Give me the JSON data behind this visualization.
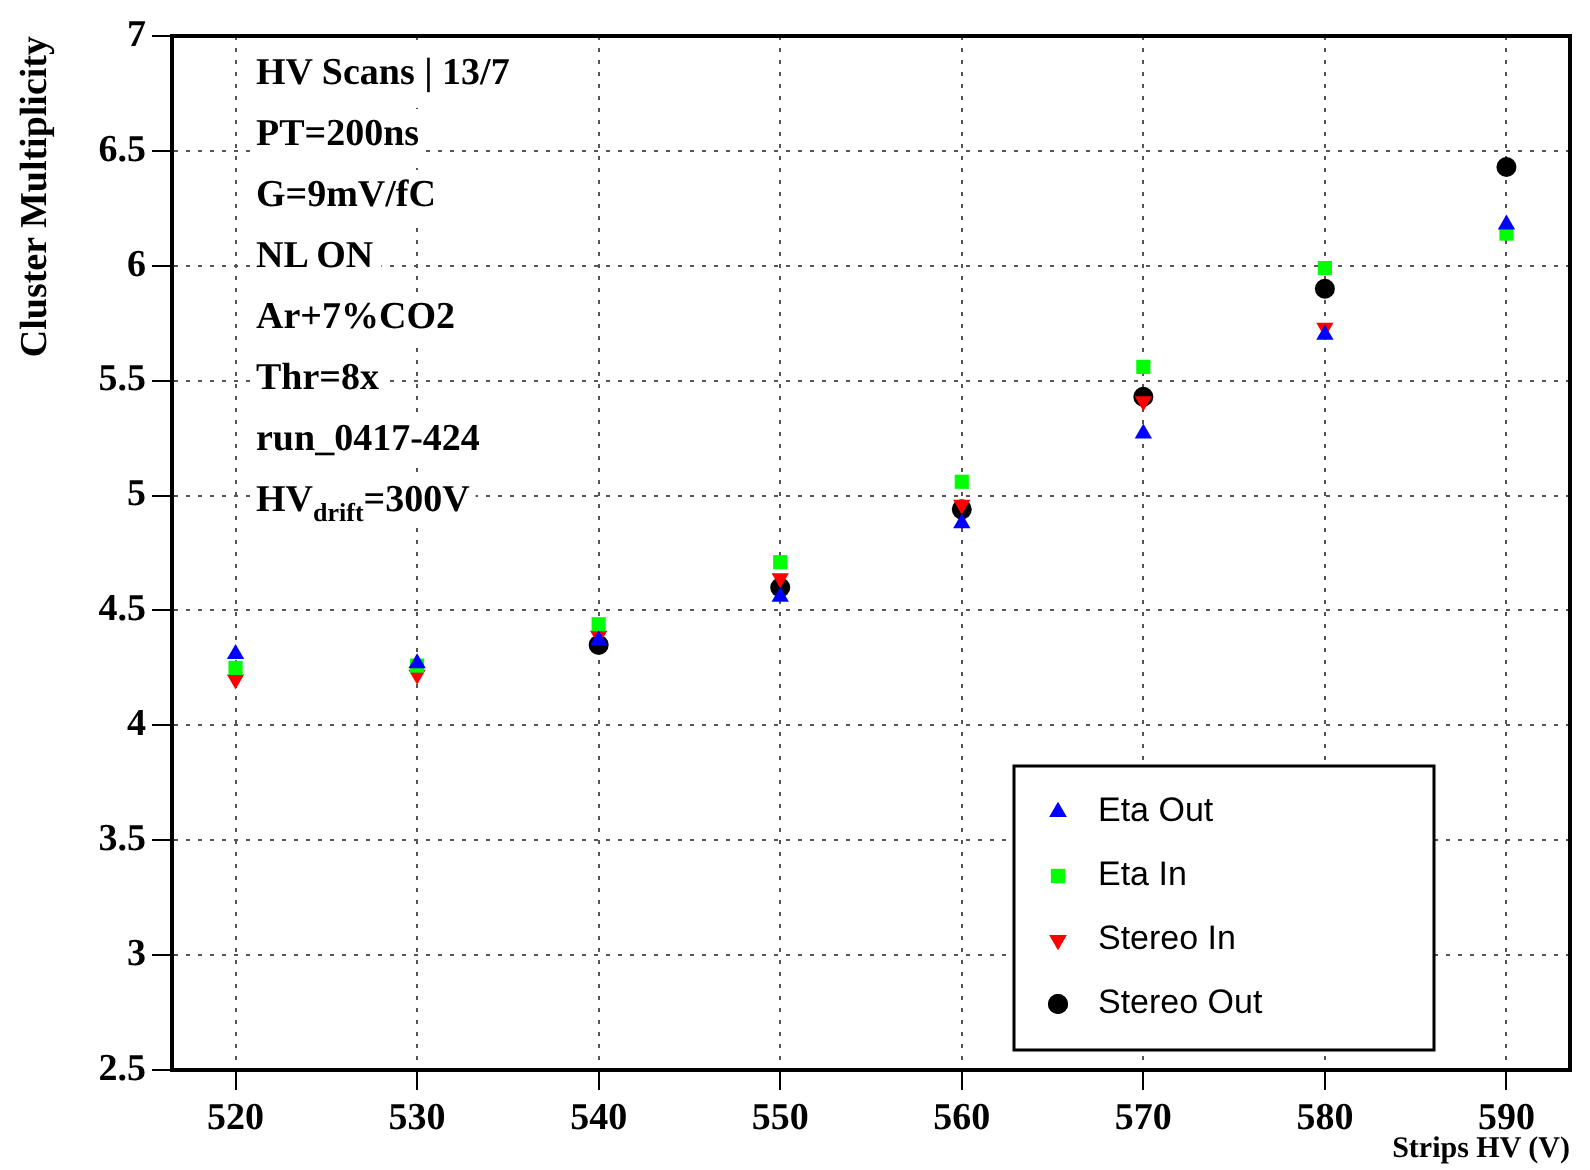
{
  "chart_data": {
    "type": "scatter",
    "xlabel": "Strips HV (V)",
    "ylabel": "Cluster Multiplicity",
    "x": [
      520,
      530,
      540,
      550,
      560,
      570,
      580,
      590
    ],
    "series": [
      {
        "name": "Eta Out",
        "color": "#0000ff",
        "marker": "triangle",
        "values": [
          4.31,
          4.27,
          4.37,
          4.56,
          4.88,
          5.27,
          5.7,
          6.18
        ]
      },
      {
        "name": "Eta In",
        "color": "#00ff00",
        "marker": "square",
        "values": [
          4.25,
          4.26,
          4.44,
          4.71,
          5.06,
          5.56,
          5.99,
          6.14
        ]
      },
      {
        "name": "Stereo In",
        "color": "#ff0000",
        "marker": "triangle-down",
        "values": [
          4.2,
          4.22,
          4.39,
          4.64,
          4.96,
          5.41,
          5.73,
          null
        ]
      },
      {
        "name": "Stereo Out",
        "color": "#000000",
        "marker": "circle",
        "values": [
          null,
          null,
          4.35,
          4.6,
          4.94,
          5.43,
          5.9,
          6.43
        ]
      }
    ],
    "xlim": [
      516.5,
      593.5
    ],
    "xticks": [
      520,
      530,
      540,
      550,
      560,
      570,
      580,
      590
    ],
    "ylim": [
      2.5,
      7
    ],
    "yticks": [
      2.5,
      3,
      3.5,
      4,
      4.5,
      5,
      5.5,
      6,
      6.5,
      7
    ],
    "grid": true,
    "legend": "bottom right",
    "annotations": [
      "HV Scans | 13/7",
      "PT=200ns",
      "G=9mV/fC",
      "NL ON",
      "Ar+7%CO2",
      "Thr=8x",
      "run_0417-424",
      "HV$_{drift}$=300V"
    ]
  }
}
